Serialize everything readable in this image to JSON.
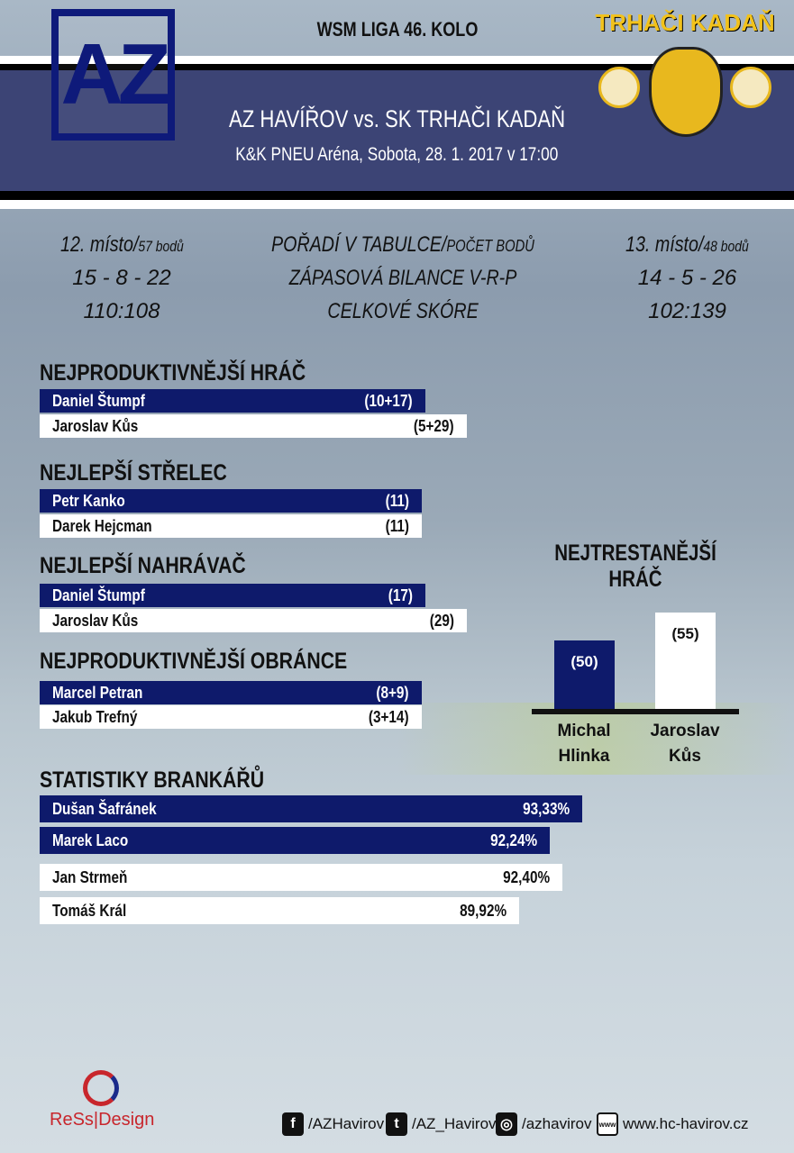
{
  "header": {
    "league": "WSM LIGA 46. KOLO",
    "match": "AZ HAVÍŘOV vs. SK TRHAČI KADAŇ",
    "venue": "K&K PNEU Aréna, Sobota, 28. 1. 2017 v 17:00",
    "home_logo": "AZ",
    "away_logo": "TRHAČI KADAŇ"
  },
  "comparison": {
    "home": {
      "place": "12. místo/",
      "points": "57 bodů",
      "record": "15 - 8 - 22",
      "score": "110:108"
    },
    "labels": {
      "standing": "POŘADÍ V TABULCE/",
      "points": "POČET BODŮ",
      "record": "ZÁPASOVÁ BILANCE V-R-P",
      "score": "CELKOVÉ SKÓRE"
    },
    "away": {
      "place": "13. místo/",
      "points": "48 bodů",
      "record": "14 - 5 - 26",
      "score": "102:139"
    }
  },
  "sections": [
    {
      "title": "NEJPRODUKTIVNĚJŠÍ HRÁČ",
      "rows": [
        {
          "name": "Daniel Štumpf",
          "value": "(10+17)"
        },
        {
          "name": "Jaroslav Kůs",
          "value": "(5+29)"
        }
      ]
    },
    {
      "title": "NEJLEPŠÍ STŘELEC",
      "rows": [
        {
          "name": "Petr Kanko",
          "value": "(11)"
        },
        {
          "name": "Darek Hejcman",
          "value": "(11)"
        }
      ]
    },
    {
      "title": "NEJLEPŠÍ NAHRÁVAČ",
      "rows": [
        {
          "name": "Daniel Štumpf",
          "value": "(17)"
        },
        {
          "name": "Jaroslav Kůs",
          "value": "(29)"
        }
      ]
    },
    {
      "title": "NEJPRODUKTIVNĚJŠÍ OBRÁNCE",
      "rows": [
        {
          "name": "Marcel Petran",
          "value": "(8+9)"
        },
        {
          "name": "Jakub Trefný",
          "value": "(3+14)"
        }
      ]
    }
  ],
  "goalies": {
    "title": "STATISTIKY BRANKÁŘŮ",
    "rows": [
      {
        "name": "Dušan Šafránek",
        "value": "93,33%"
      },
      {
        "name": "Marek Laco",
        "value": "92,24%"
      },
      {
        "name": "Jan Strmeň",
        "value": "92,40%"
      },
      {
        "name": "Tomáš Král",
        "value": "89,92%"
      }
    ]
  },
  "penalty": {
    "title": "NEJTRESTANĚJŠÍ HRÁČ",
    "players": [
      {
        "name1": "Michal",
        "name2": "Hlinka",
        "label": "(50)",
        "minutes": 50,
        "color": "#0e1a6b"
      },
      {
        "name1": "Jaroslav",
        "name2": "Kůs",
        "label": "(55)",
        "minutes": 55,
        "color": "#ffffff"
      }
    ]
  },
  "footer": {
    "designer": "ReSs|Design",
    "facebook": "/AZHavirov",
    "twitter": "/AZ_Havirov",
    "instagram": "/azhavirov",
    "web": "www.hc-havirov.cz"
  }
}
